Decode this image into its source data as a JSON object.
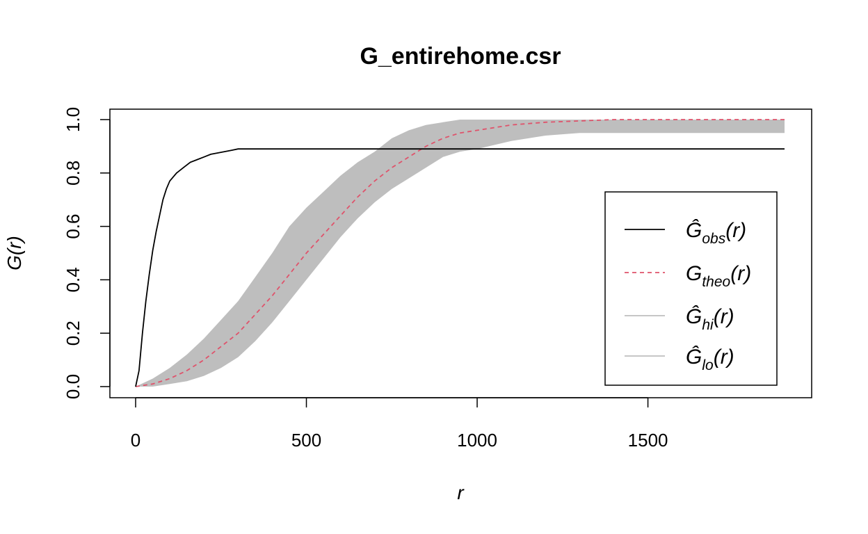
{
  "chart_data": {
    "type": "line",
    "title": "G_entirehome.csr",
    "xlabel": "r",
    "ylabel": "G(r)",
    "xlim": [
      0,
      1900
    ],
    "ylim": [
      0,
      1
    ],
    "x_ticks": [
      "0",
      "500",
      "1000",
      "1500"
    ],
    "y_ticks": [
      "0.0",
      "0.2",
      "0.4",
      "0.6",
      "0.8",
      "1.0"
    ],
    "legend_position": "right",
    "colors": {
      "obs": "#000000",
      "theo": "#DF536B",
      "envelope": "#BEBEBE"
    },
    "series": [
      {
        "id": "obs",
        "legend": {
          "main": "Ĝ",
          "sub": "obs",
          "tail": "(r)"
        },
        "x": [
          0,
          10,
          20,
          30,
          40,
          50,
          60,
          70,
          80,
          90,
          100,
          120,
          140,
          160,
          180,
          200,
          220,
          240,
          260,
          280,
          300,
          1900
        ],
        "y": [
          0,
          0.06,
          0.2,
          0.32,
          0.42,
          0.51,
          0.58,
          0.64,
          0.7,
          0.74,
          0.77,
          0.8,
          0.82,
          0.84,
          0.85,
          0.86,
          0.87,
          0.875,
          0.88,
          0.885,
          0.89,
          0.89
        ]
      },
      {
        "id": "theo",
        "legend": {
          "main": "G",
          "sub": "theo",
          "tail": "(r)"
        },
        "x": [
          0,
          50,
          100,
          150,
          200,
          250,
          300,
          350,
          400,
          450,
          500,
          550,
          600,
          650,
          700,
          750,
          800,
          850,
          900,
          950,
          1000,
          1100,
          1200,
          1300,
          1400,
          1500,
          1900
        ],
        "y": [
          0,
          0.01,
          0.03,
          0.06,
          0.1,
          0.15,
          0.2,
          0.27,
          0.34,
          0.42,
          0.5,
          0.57,
          0.64,
          0.71,
          0.77,
          0.82,
          0.86,
          0.9,
          0.93,
          0.95,
          0.96,
          0.98,
          0.99,
          0.995,
          1.0,
          1.0,
          1.0
        ]
      },
      {
        "id": "hi",
        "legend": {
          "main": "Ĝ",
          "sub": "hi",
          "tail": "(r)"
        },
        "x": [
          0,
          50,
          100,
          150,
          200,
          250,
          300,
          350,
          400,
          450,
          500,
          550,
          600,
          650,
          700,
          750,
          800,
          850,
          900,
          950,
          1000,
          1100,
          1200,
          1300,
          1400,
          1500,
          1900
        ],
        "y": [
          0,
          0.03,
          0.07,
          0.12,
          0.18,
          0.25,
          0.32,
          0.41,
          0.5,
          0.6,
          0.67,
          0.73,
          0.79,
          0.84,
          0.88,
          0.93,
          0.96,
          0.98,
          0.99,
          1.0,
          1.0,
          1.0,
          1.0,
          1.0,
          1.0,
          1.0,
          1.0
        ]
      },
      {
        "id": "lo",
        "legend": {
          "main": "Ĝ",
          "sub": "lo",
          "tail": "(r)"
        },
        "x": [
          0,
          50,
          100,
          150,
          200,
          250,
          300,
          350,
          400,
          450,
          500,
          550,
          600,
          650,
          700,
          750,
          800,
          850,
          900,
          950,
          1000,
          1100,
          1200,
          1300,
          1400,
          1500,
          1900
        ],
        "y": [
          0,
          0.0,
          0.01,
          0.02,
          0.04,
          0.07,
          0.11,
          0.17,
          0.24,
          0.32,
          0.4,
          0.48,
          0.56,
          0.63,
          0.69,
          0.74,
          0.78,
          0.82,
          0.86,
          0.88,
          0.89,
          0.92,
          0.94,
          0.95,
          0.95,
          0.95,
          0.95
        ]
      }
    ]
  }
}
